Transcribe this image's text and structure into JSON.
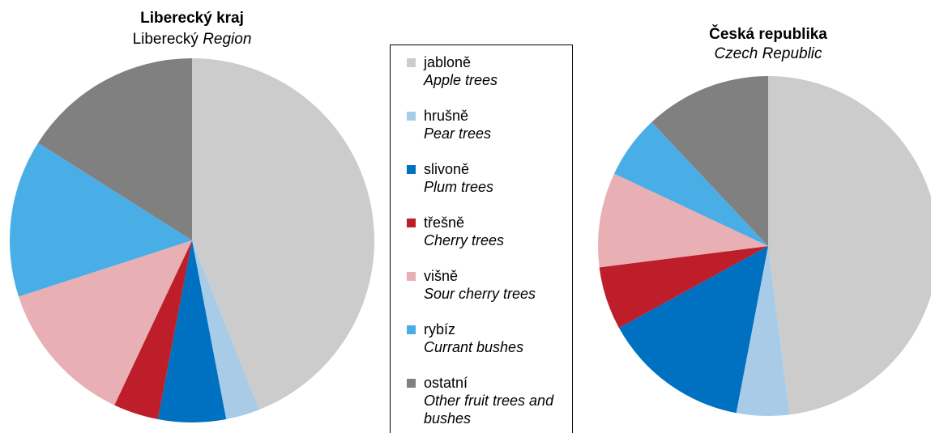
{
  "chart_data": [
    {
      "type": "pie",
      "title": "Liberecký kraj",
      "subtitle": "Liberecký",
      "subtitle_en": "Region",
      "values": [
        44,
        3,
        6,
        4,
        13,
        14,
        16
      ]
    },
    {
      "type": "pie",
      "title": "Česká republika",
      "subtitle_en": "Czech Republic",
      "values": [
        48,
        5,
        14,
        6,
        9,
        6,
        12
      ]
    }
  ],
  "legend": [
    {
      "name": "jabloně",
      "name_en": "Apple trees",
      "color": "#cccccc"
    },
    {
      "name": "hrušně",
      "name_en": "Pear trees",
      "color": "#a8cce8"
    },
    {
      "name": "slivoně",
      "name_en": "Plum trees",
      "color": "#0070c0"
    },
    {
      "name": "třešně",
      "name_en": "Cherry trees",
      "color": "#be1e2a"
    },
    {
      "name": "višně",
      "name_en": "Sour cherry trees",
      "color": "#e8b0b4"
    },
    {
      "name": "rybíz",
      "name_en": "Currant bushes",
      "color": "#4aaee6"
    },
    {
      "name": "ostatní",
      "name_en": "Other fruit trees and bushes",
      "color": "#808080"
    }
  ]
}
